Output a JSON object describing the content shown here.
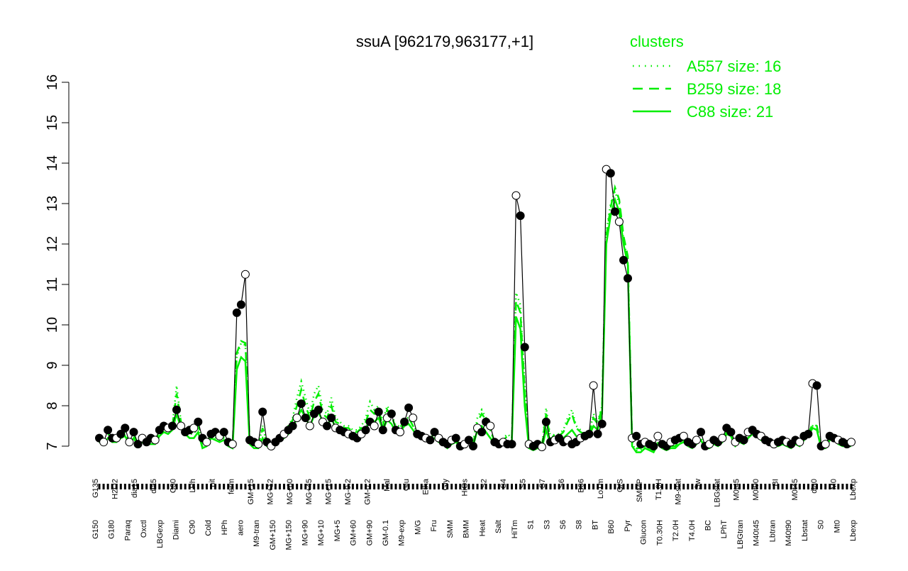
{
  "chart_data": {
    "type": "line",
    "title": "ssuA [962179,963177,+1]",
    "xlabel": "",
    "ylabel": "",
    "ylim": [
      7,
      16
    ],
    "y_ticks": [
      7,
      8,
      9,
      10,
      11,
      12,
      13,
      14,
      15,
      16
    ],
    "grid": false,
    "legend": {
      "title": "clusters",
      "placement": "top-right",
      "color": "#00ee00",
      "entries": [
        {
          "label": "A557 size: 16",
          "style": "dotted"
        },
        {
          "label": "B259 size: 18",
          "style": "dashed"
        },
        {
          "label": "C88 size: 21",
          "style": "solid"
        }
      ]
    },
    "colors": {
      "series_line": "#000000",
      "cluster": "#00ee00",
      "point_filled": "#000000",
      "point_open": "#ffffff"
    },
    "tick_labels_upper": [
      "G135",
      "H2O2",
      "dia15",
      "dia5",
      "C30",
      "LPh",
      "nit",
      "ferm",
      "GM+15",
      "MG+12",
      "MG+60",
      "MG+45",
      "MG+15",
      "MG-0.2",
      "GM-0.2",
      "Mal",
      "Glu",
      "Etha",
      "Gly",
      "HiOs",
      "S2",
      "S4",
      "S5",
      "S7",
      "S6",
      "B36",
      "LoTm",
      "G/S",
      "SMMP",
      "T1.0H",
      "M9-stat",
      "Sw",
      "LBGstat",
      "M0t45",
      "M0t90",
      "BI",
      "M0t45",
      "dia0",
      "M0",
      "Lbexp"
    ],
    "tick_labels_lower": [
      "G150",
      "G180",
      "Paraq",
      "Oxctl",
      "LBGexp",
      "Diami",
      "C90",
      "Cold",
      "HPh",
      "aero",
      "M9-tran",
      "GM+150",
      "MG+150",
      "MG+90",
      "MG+10",
      "MG+5",
      "GM+60",
      "GM+90",
      "GM-0.1",
      "M9-exp",
      "M/G",
      "Fru",
      "SMM",
      "BMM",
      "Heat",
      "Salt",
      "HiTm",
      "S1",
      "S3",
      "S6",
      "S8",
      "BT",
      "B60",
      "Pyr",
      "Glucon",
      "T0.30H",
      "T2.0H",
      "T4.0H",
      "BC",
      "LPhT",
      "LBGtran",
      "M40t45",
      "Lbtran",
      "M40t90",
      "Lbstat",
      "S0",
      "Mt0",
      "Lbexp"
    ],
    "series": [
      {
        "name": "",
        "values": [
          7.2,
          7.1,
          7.4,
          7.2,
          7.2,
          7.3,
          7.45,
          7.1,
          7.35,
          7.05,
          7.2,
          7.1,
          7.2,
          7.15,
          7.4,
          7.5,
          7.45,
          7.5,
          7.9,
          7.5,
          7.35,
          7.4,
          7.45,
          7.6,
          7.2,
          7.1,
          7.3,
          7.35,
          7.25,
          7.35,
          7.1,
          7.05,
          10.3,
          10.5,
          11.25,
          7.15,
          7.1,
          7.05,
          7.85,
          7.1,
          7.0,
          7.1,
          7.2,
          7.3,
          7.4,
          7.5,
          7.7,
          8.05,
          7.7,
          7.5,
          7.8,
          7.9,
          7.6,
          7.5,
          7.7,
          7.45,
          7.4,
          7.35,
          7.3,
          7.25,
          7.2,
          7.3,
          7.4,
          7.6,
          7.5,
          7.85,
          7.4,
          7.7,
          7.8,
          7.4,
          7.35,
          7.6,
          7.95,
          7.7,
          7.3,
          7.25,
          7.2,
          7.15,
          7.35,
          7.2,
          7.1,
          7.05,
          7.15,
          7.2,
          7.0,
          7.05,
          7.15,
          7.0,
          7.45,
          7.35,
          7.6,
          7.5,
          7.1,
          7.05,
          7.1,
          7.05,
          7.05,
          13.2,
          12.7,
          9.45,
          7.05,
          7.0,
          7.05,
          6.98,
          7.6,
          7.1,
          7.15,
          7.2,
          7.1,
          7.15,
          7.05,
          7.1,
          7.2,
          7.25,
          7.3,
          8.5,
          7.3,
          7.55,
          13.85,
          13.75,
          12.8,
          12.55,
          11.6,
          11.15,
          7.2,
          7.25,
          7.05,
          7.1,
          7.05,
          7.0,
          7.25,
          7.05,
          7.0,
          7.1,
          7.15,
          7.2,
          7.25,
          7.1,
          7.05,
          7.15,
          7.35,
          7.0,
          7.05,
          7.15,
          7.1,
          7.2,
          7.45,
          7.35,
          7.1,
          7.2,
          7.15,
          7.35,
          7.4,
          7.3,
          7.25,
          7.15,
          7.1,
          7.05,
          7.1,
          7.15,
          7.1,
          7.05,
          7.15,
          7.1,
          7.25,
          7.3,
          8.55,
          8.5,
          7.0,
          7.05,
          7.25,
          7.2,
          7.15,
          7.1,
          7.05,
          7.1
        ]
      },
      {
        "name": "A557 size: 16",
        "values": [
          7.1,
          7.05,
          7.2,
          7.15,
          7.1,
          7.2,
          7.3,
          7.1,
          7.2,
          7.0,
          7.1,
          7.05,
          7.1,
          7.1,
          7.3,
          7.45,
          7.4,
          7.5,
          8.5,
          7.6,
          7.4,
          7.3,
          7.3,
          7.5,
          7.0,
          7.05,
          7.25,
          7.2,
          7.15,
          7.2,
          7.05,
          7.0,
          9.2,
          9.55,
          9.5,
          7.1,
          7.0,
          7.0,
          7.5,
          7.05,
          7.0,
          7.1,
          7.2,
          7.3,
          7.5,
          7.7,
          8.2,
          8.6,
          8.2,
          7.8,
          8.3,
          8.5,
          7.9,
          7.8,
          8.2,
          7.7,
          7.6,
          7.5,
          7.5,
          7.4,
          7.4,
          7.5,
          7.7,
          8.1,
          7.9,
          8.0,
          7.6,
          8.0,
          7.8,
          7.5,
          7.5,
          7.7,
          7.7,
          7.5,
          7.35,
          7.3,
          7.25,
          7.2,
          7.3,
          7.2,
          7.1,
          7.0,
          7.1,
          7.15,
          7.05,
          7.1,
          7.15,
          7.1,
          7.7,
          7.9,
          7.7,
          7.4,
          7.1,
          7.05,
          7.2,
          7.3,
          7.2,
          10.8,
          10.5,
          8.5,
          7.0,
          6.95,
          7.0,
          7.0,
          7.95,
          7.2,
          7.3,
          7.3,
          7.4,
          7.7,
          7.9,
          7.5,
          7.4,
          7.3,
          7.3,
          7.8,
          7.6,
          8.0,
          12.3,
          13.0,
          13.3,
          13.0,
          12.1,
          11.6,
          7.05,
          6.9,
          6.9,
          7.0,
          6.95,
          6.9,
          7.1,
          7.0,
          6.95,
          7.0,
          7.0,
          7.1,
          7.15,
          7.05,
          7.0,
          7.1,
          7.2,
          7.0,
          7.0,
          7.1,
          7.05,
          7.15,
          7.35,
          7.3,
          7.05,
          7.15,
          7.1,
          7.25,
          7.3,
          7.3,
          7.2,
          7.15,
          7.1,
          7.05,
          7.05,
          7.1,
          7.05,
          7.0,
          7.1,
          7.05,
          7.2,
          7.3,
          7.5,
          7.45,
          7.0,
          7.0,
          7.2,
          7.2,
          7.1,
          7.05,
          7.05,
          7.05
        ]
      },
      {
        "name": "B259 size: 18",
        "values": [
          7.15,
          7.1,
          7.3,
          7.2,
          7.15,
          7.25,
          7.35,
          7.1,
          7.3,
          7.05,
          7.15,
          7.1,
          7.15,
          7.15,
          7.35,
          7.5,
          7.45,
          7.5,
          8.3,
          7.6,
          7.4,
          7.35,
          7.4,
          7.55,
          7.05,
          7.1,
          7.3,
          7.25,
          7.2,
          7.25,
          7.05,
          7.0,
          9.3,
          9.6,
          9.55,
          7.1,
          7.05,
          7.0,
          7.45,
          7.05,
          7.0,
          7.1,
          7.2,
          7.3,
          7.45,
          7.65,
          8.0,
          8.4,
          8.0,
          7.7,
          8.1,
          8.3,
          7.8,
          7.7,
          8.0,
          7.6,
          7.55,
          7.45,
          7.45,
          7.35,
          7.35,
          7.45,
          7.6,
          7.9,
          7.8,
          7.9,
          7.5,
          7.9,
          7.75,
          7.45,
          7.45,
          7.65,
          7.7,
          7.5,
          7.3,
          7.25,
          7.2,
          7.2,
          7.3,
          7.2,
          7.1,
          7.0,
          7.1,
          7.15,
          7.05,
          7.1,
          7.15,
          7.05,
          7.6,
          7.8,
          7.65,
          7.4,
          7.1,
          7.05,
          7.15,
          7.25,
          7.2,
          10.6,
          10.3,
          8.4,
          7.0,
          6.95,
          7.0,
          7.0,
          7.8,
          7.15,
          7.3,
          7.25,
          7.35,
          7.6,
          7.8,
          7.45,
          7.35,
          7.3,
          7.3,
          7.7,
          7.55,
          7.95,
          12.2,
          12.9,
          13.4,
          13.1,
          12.2,
          11.7,
          7.1,
          6.95,
          6.95,
          7.0,
          6.95,
          6.9,
          7.1,
          7.0,
          6.95,
          7.0,
          7.0,
          7.1,
          7.15,
          7.05,
          7.0,
          7.1,
          7.2,
          7.0,
          7.0,
          7.1,
          7.05,
          7.15,
          7.35,
          7.3,
          7.05,
          7.15,
          7.1,
          7.25,
          7.35,
          7.3,
          7.2,
          7.15,
          7.1,
          7.05,
          7.05,
          7.1,
          7.05,
          7.0,
          7.1,
          7.05,
          7.2,
          7.3,
          7.55,
          7.5,
          7.0,
          7.0,
          7.2,
          7.2,
          7.1,
          7.05,
          7.05,
          7.05
        ]
      },
      {
        "name": "C88 size: 21",
        "values": [
          7.1,
          7.05,
          7.2,
          7.1,
          7.1,
          7.2,
          7.25,
          7.05,
          7.2,
          7.0,
          7.1,
          7.05,
          7.05,
          7.05,
          7.25,
          7.35,
          7.3,
          7.4,
          7.8,
          7.45,
          7.3,
          7.2,
          7.2,
          7.35,
          6.95,
          7.0,
          7.2,
          7.15,
          7.1,
          7.15,
          7.0,
          6.95,
          8.9,
          9.2,
          9.1,
          7.05,
          6.95,
          6.95,
          7.2,
          7.0,
          6.95,
          7.05,
          7.15,
          7.2,
          7.3,
          7.45,
          7.7,
          7.9,
          7.7,
          7.5,
          7.75,
          7.85,
          7.6,
          7.5,
          7.7,
          7.45,
          7.4,
          7.35,
          7.35,
          7.25,
          7.25,
          7.35,
          7.45,
          7.65,
          7.6,
          7.7,
          7.4,
          7.65,
          7.55,
          7.35,
          7.35,
          7.5,
          7.55,
          7.4,
          7.25,
          7.2,
          7.15,
          7.15,
          7.2,
          7.1,
          7.05,
          6.95,
          7.05,
          7.1,
          7.0,
          7.05,
          7.1,
          7.0,
          7.4,
          7.5,
          7.35,
          7.2,
          7.05,
          7.0,
          7.05,
          7.1,
          7.1,
          10.2,
          9.9,
          8.0,
          6.95,
          6.9,
          6.95,
          6.95,
          7.4,
          7.05,
          7.15,
          7.15,
          7.2,
          7.3,
          7.4,
          7.25,
          7.2,
          7.2,
          7.25,
          7.5,
          7.4,
          7.8,
          12.0,
          12.7,
          13.1,
          12.8,
          12.0,
          11.5,
          7.0,
          6.85,
          6.85,
          6.95,
          6.9,
          6.85,
          7.05,
          6.95,
          6.9,
          6.95,
          6.95,
          7.05,
          7.1,
          7.0,
          6.95,
          7.05,
          7.15,
          6.95,
          6.95,
          7.05,
          7.0,
          7.1,
          7.3,
          7.25,
          7.0,
          7.1,
          7.05,
          7.2,
          7.3,
          7.25,
          7.15,
          7.1,
          7.05,
          7.0,
          7.0,
          7.05,
          7.0,
          6.95,
          7.05,
          7.0,
          7.15,
          7.25,
          7.45,
          7.4,
          6.95,
          6.95,
          7.15,
          7.15,
          7.05,
          7.0,
          7.0,
          7.0
        ]
      }
    ]
  }
}
